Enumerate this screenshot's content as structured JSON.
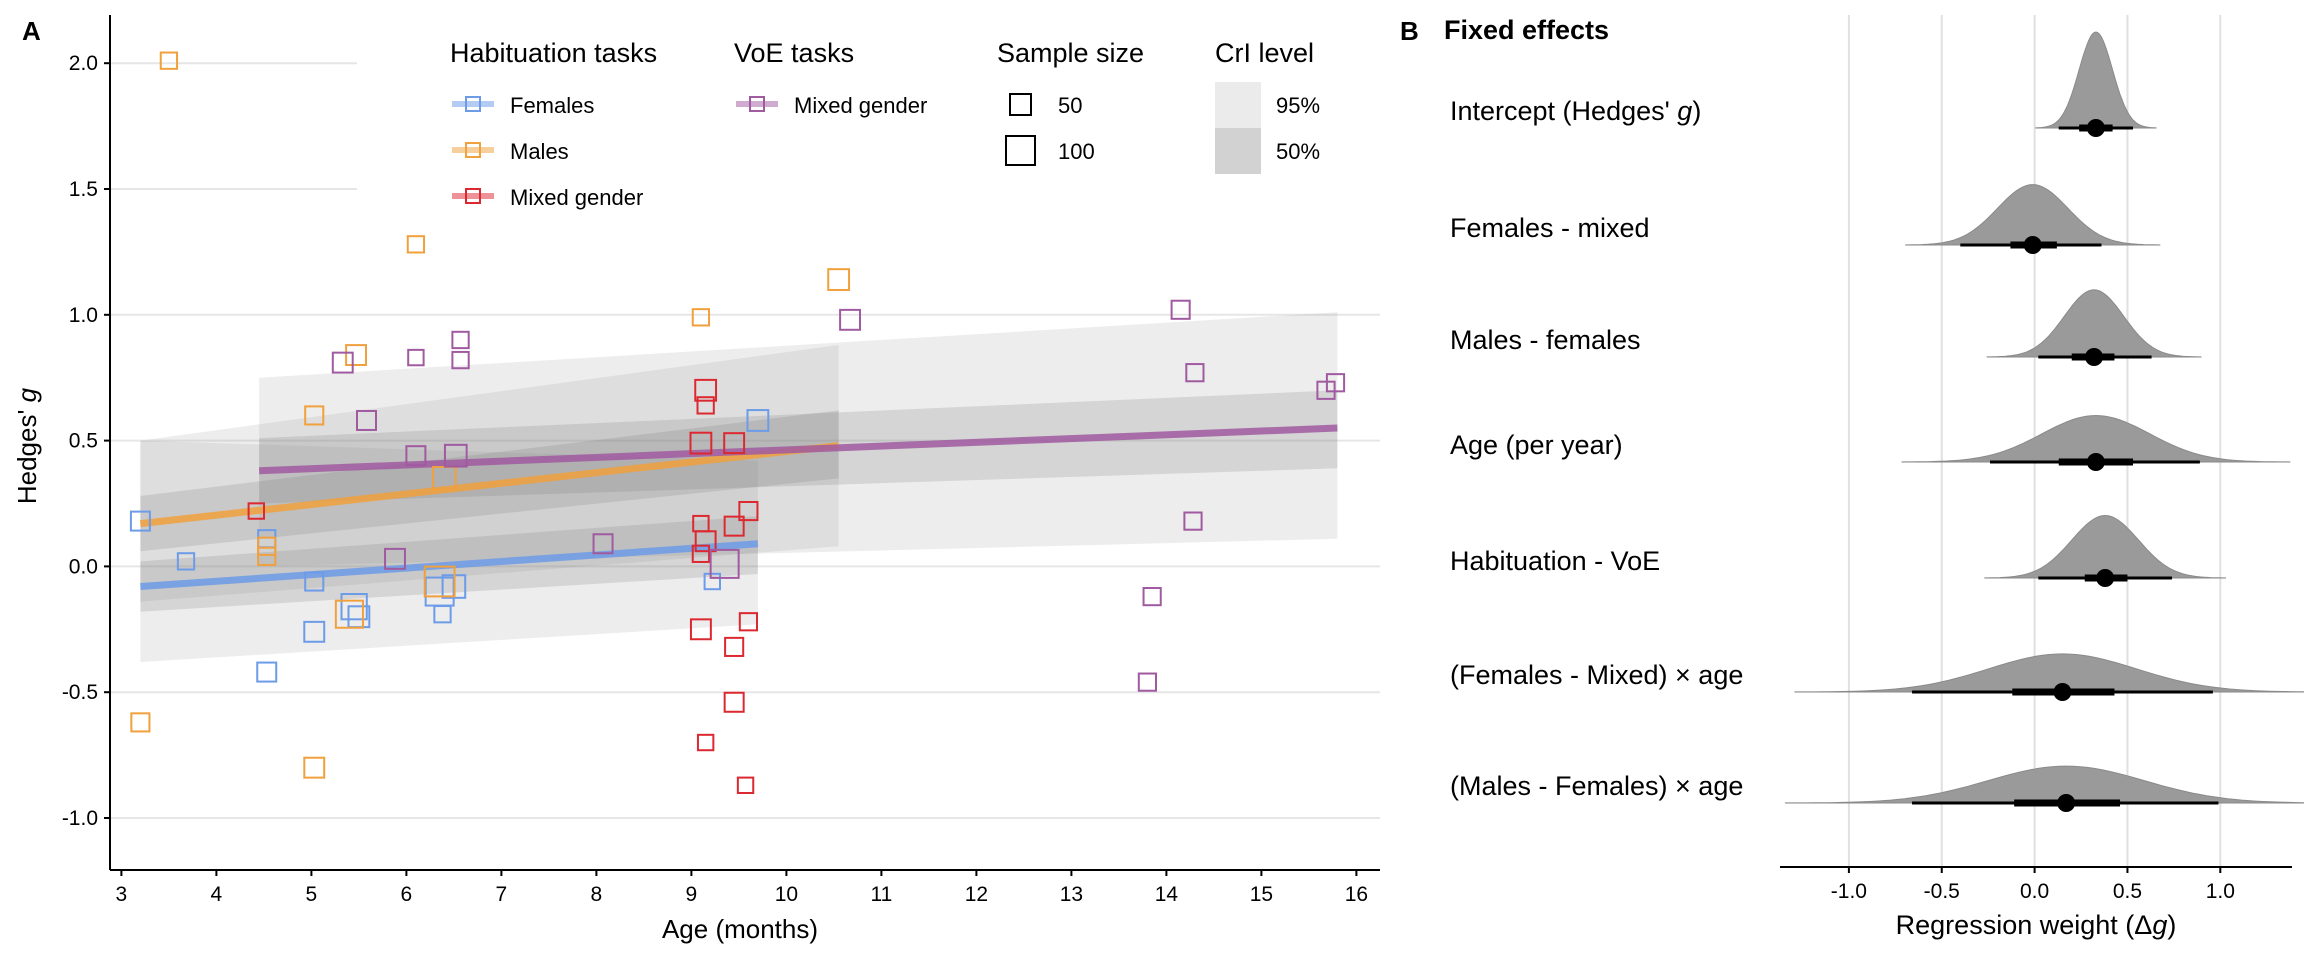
{
  "chart_data": [
    {
      "type": "scatter",
      "panel_label": "A",
      "xlabel": "Age (months)",
      "ylabel_main": "Hedges'",
      "ylabel_italic": "g",
      "xlim": [
        2.95,
        16.15
      ],
      "ylim": [
        -1.2,
        2.2
      ],
      "x_ticks": [
        3,
        4,
        5,
        6,
        7,
        8,
        9,
        10,
        11,
        12,
        13,
        14,
        15,
        16
      ],
      "y_ticks": [
        -1.0,
        -0.5,
        0.0,
        0.5,
        1.0,
        1.5,
        2.0
      ],
      "y_tick_labels": [
        "-1.0",
        "-0.5",
        "0.0",
        "0.5",
        "1.0",
        "1.5",
        "2.0"
      ],
      "legend": {
        "habituation_title": "Habituation tasks",
        "voe_title": "VoE tasks",
        "sample_title": "Sample size",
        "cri_title": "CrI level",
        "sample_sizes": [
          "50",
          "100"
        ],
        "cri_levels": [
          "95%",
          "50%"
        ]
      },
      "series": [
        {
          "name": "Females",
          "group": "Habituation tasks",
          "color": "#6c9be8",
          "fit": {
            "x0": 3.2,
            "y0": -0.08,
            "x1": 9.7,
            "y1": 0.09
          },
          "ci95": {
            "x": [
              3.2,
              9.7
            ],
            "lo": [
              -0.38,
              -0.23
            ],
            "hi": [
              0.5,
              0.42
            ]
          },
          "ci50": {
            "x": [
              3.2,
              9.7
            ],
            "lo": [
              -0.18,
              -0.03
            ],
            "hi": [
              0.02,
              0.2
            ]
          },
          "points": [
            {
              "x": 3.2,
              "y": 0.18,
              "n": 50
            },
            {
              "x": 3.68,
              "y": 0.02,
              "n": 35
            },
            {
              "x": 4.53,
              "y": 0.11,
              "n": 40
            },
            {
              "x": 4.53,
              "y": -0.42,
              "n": 50
            },
            {
              "x": 5.03,
              "y": -0.06,
              "n": 45
            },
            {
              "x": 5.03,
              "y": -0.26,
              "n": 55
            },
            {
              "x": 5.45,
              "y": -0.16,
              "n": 85
            },
            {
              "x": 5.5,
              "y": -0.2,
              "n": 60
            },
            {
              "x": 6.35,
              "y": -0.1,
              "n": 100
            },
            {
              "x": 6.38,
              "y": -0.19,
              "n": 35
            },
            {
              "x": 6.5,
              "y": -0.08,
              "n": 70
            },
            {
              "x": 9.22,
              "y": -0.06,
              "n": 30
            },
            {
              "x": 9.7,
              "y": 0.58,
              "n": 60
            }
          ]
        },
        {
          "name": "Males",
          "group": "Habituation tasks",
          "color": "#f0a03c",
          "fit": {
            "x0": 3.2,
            "y0": 0.17,
            "x1": 10.55,
            "y1": 0.48
          },
          "ci95": {
            "x": [
              3.2,
              10.55
            ],
            "lo": [
              -0.14,
              0.08
            ],
            "hi": [
              0.5,
              0.88
            ]
          },
          "ci50": {
            "x": [
              3.2,
              10.55
            ],
            "lo": [
              0.06,
              0.35
            ],
            "hi": [
              0.28,
              0.62
            ]
          },
          "points": [
            {
              "x": 3.5,
              "y": 2.01,
              "n": 35
            },
            {
              "x": 3.2,
              "y": -0.62,
              "n": 45
            },
            {
              "x": 4.53,
              "y": 0.08,
              "n": 40
            },
            {
              "x": 4.53,
              "y": 0.04,
              "n": 40
            },
            {
              "x": 5.03,
              "y": 0.6,
              "n": 45
            },
            {
              "x": 5.03,
              "y": -0.8,
              "n": 55
            },
            {
              "x": 5.47,
              "y": 0.84,
              "n": 55
            },
            {
              "x": 5.4,
              "y": -0.19,
              "n": 95
            },
            {
              "x": 6.1,
              "y": 1.28,
              "n": 35
            },
            {
              "x": 6.4,
              "y": 0.35,
              "n": 70
            },
            {
              "x": 6.35,
              "y": -0.06,
              "n": 110
            },
            {
              "x": 9.1,
              "y": 0.99,
              "n": 35
            },
            {
              "x": 10.55,
              "y": 1.14,
              "n": 60
            }
          ]
        },
        {
          "name": "Mixed gender",
          "group": "Habituation tasks",
          "color": "#dc2830",
          "fit": null,
          "points": [
            {
              "x": 4.42,
              "y": 0.22,
              "n": 30
            },
            {
              "x": 9.1,
              "y": 0.49,
              "n": 60
            },
            {
              "x": 9.15,
              "y": 0.7,
              "n": 60
            },
            {
              "x": 9.15,
              "y": 0.64,
              "n": 35
            },
            {
              "x": 9.45,
              "y": 0.49,
              "n": 55
            },
            {
              "x": 9.1,
              "y": 0.17,
              "n": 30
            },
            {
              "x": 9.15,
              "y": 0.1,
              "n": 55
            },
            {
              "x": 9.1,
              "y": 0.05,
              "n": 35
            },
            {
              "x": 9.45,
              "y": 0.16,
              "n": 50
            },
            {
              "x": 9.6,
              "y": 0.22,
              "n": 45
            },
            {
              "x": 9.1,
              "y": -0.25,
              "n": 55
            },
            {
              "x": 9.45,
              "y": -0.32,
              "n": 45
            },
            {
              "x": 9.6,
              "y": -0.22,
              "n": 40
            },
            {
              "x": 9.45,
              "y": -0.54,
              "n": 50
            },
            {
              "x": 9.15,
              "y": -0.7,
              "n": 30
            },
            {
              "x": 9.57,
              "y": -0.87,
              "n": 30
            }
          ]
        },
        {
          "name": "Mixed gender",
          "group": "VoE tasks",
          "color": "#a05aa0",
          "fit": {
            "x0": 4.45,
            "y0": 0.38,
            "x1": 15.8,
            "y1": 0.55
          },
          "ci95": {
            "x": [
              4.45,
              15.8
            ],
            "lo": [
              0.0,
              0.11
            ],
            "hi": [
              0.75,
              1.01
            ]
          },
          "ci50": {
            "x": [
              4.45,
              15.8
            ],
            "lo": [
              0.25,
              0.39
            ],
            "hi": [
              0.51,
              0.7
            ]
          },
          "points": [
            {
              "x": 5.33,
              "y": 0.81,
              "n": 55
            },
            {
              "x": 5.58,
              "y": 0.58,
              "n": 50
            },
            {
              "x": 6.1,
              "y": 0.83,
              "n": 30
            },
            {
              "x": 6.57,
              "y": 0.9,
              "n": 35
            },
            {
              "x": 6.57,
              "y": 0.82,
              "n": 35
            },
            {
              "x": 6.1,
              "y": 0.44,
              "n": 50
            },
            {
              "x": 6.52,
              "y": 0.44,
              "n": 65
            },
            {
              "x": 5.88,
              "y": 0.03,
              "n": 55
            },
            {
              "x": 8.07,
              "y": 0.09,
              "n": 50
            },
            {
              "x": 9.35,
              "y": 0.01,
              "n": 100
            },
            {
              "x": 10.67,
              "y": 0.98,
              "n": 55
            },
            {
              "x": 14.15,
              "y": 1.02,
              "n": 45
            },
            {
              "x": 14.3,
              "y": 0.77,
              "n": 40
            },
            {
              "x": 14.28,
              "y": 0.18,
              "n": 40
            },
            {
              "x": 13.85,
              "y": -0.12,
              "n": 40
            },
            {
              "x": 13.8,
              "y": -0.46,
              "n": 40
            },
            {
              "x": 15.68,
              "y": 0.7,
              "n": 40
            },
            {
              "x": 15.78,
              "y": 0.73,
              "n": 40
            }
          ]
        }
      ]
    },
    {
      "type": "density",
      "panel_label": "B",
      "title": "Fixed effects",
      "xlabel_prefix": "Regression weight (Δ",
      "xlabel_italic": "g",
      "xlabel_suffix": ")",
      "xlim": [
        -1.38,
        1.38
      ],
      "x_ticks": [
        -1.0,
        -0.5,
        0.0,
        0.5,
        1.0
      ],
      "x_tick_labels": [
        "-1.0",
        "-0.5",
        "0.0",
        "0.5",
        "1.0"
      ],
      "effects": [
        {
          "label_prefix": "Intercept (Hedges' ",
          "label_italic": "g",
          "label_suffix": ")",
          "mean": 0.33,
          "sd": 0.09,
          "ci66": [
            0.24,
            0.42
          ],
          "ci95": [
            0.13,
            0.53
          ]
        },
        {
          "label_prefix": "Females - mixed",
          "label_italic": "",
          "label_suffix": "",
          "mean": -0.01,
          "sd": 0.19,
          "ci66": [
            -0.13,
            0.12
          ],
          "ci95": [
            -0.4,
            0.36
          ]
        },
        {
          "label_prefix": "Males - females",
          "label_italic": "",
          "label_suffix": "",
          "mean": 0.32,
          "sd": 0.16,
          "ci66": [
            0.2,
            0.43
          ],
          "ci95": [
            0.02,
            0.63
          ]
        },
        {
          "label_prefix": "Age (per year)",
          "label_italic": "",
          "label_suffix": "",
          "mean": 0.33,
          "sd": 0.29,
          "ci66": [
            0.13,
            0.53
          ],
          "ci95": [
            -0.24,
            0.89
          ]
        },
        {
          "label_prefix": "Habituation - VoE",
          "label_italic": "",
          "label_suffix": "",
          "mean": 0.38,
          "sd": 0.18,
          "ci66": [
            0.27,
            0.5
          ],
          "ci95": [
            0.02,
            0.74
          ]
        },
        {
          "label_prefix": "(Females - Mixed) × age",
          "label_italic": "",
          "label_suffix": "",
          "mean": 0.15,
          "sd": 0.4,
          "ci66": [
            -0.12,
            0.43
          ],
          "ci95": [
            -0.66,
            0.96
          ]
        },
        {
          "label_prefix": "(Males - Females) × age",
          "label_italic": "",
          "label_suffix": "",
          "mean": 0.17,
          "sd": 0.42,
          "ci66": [
            -0.11,
            0.46
          ],
          "ci95": [
            -0.66,
            0.99
          ]
        }
      ]
    }
  ]
}
